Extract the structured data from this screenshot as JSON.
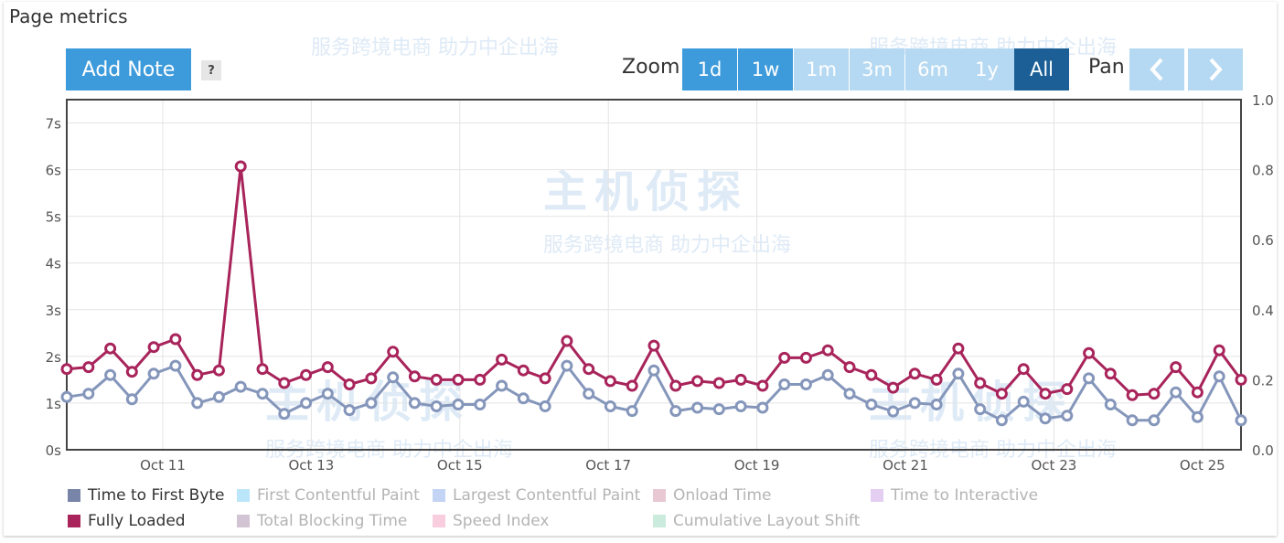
{
  "title": "Page metrics",
  "add_note_label": "Add Note",
  "help_label": "?",
  "zoom_label": "Zoom",
  "pan_label": "Pan",
  "zoom_buttons": [
    {
      "label": "1d",
      "state": "enabled"
    },
    {
      "label": "1w",
      "state": "enabled"
    },
    {
      "label": "1m",
      "state": "disabled"
    },
    {
      "label": "3m",
      "state": "disabled"
    },
    {
      "label": "6m",
      "state": "disabled"
    },
    {
      "label": "1y",
      "state": "disabled"
    },
    {
      "label": "All",
      "state": "selected"
    }
  ],
  "colors": {
    "button": "#3d9bdb",
    "button_disabled": "#b5d9f2",
    "button_selected": "#1b5f96",
    "ttfb": "#8596bb",
    "fully_loaded": "#a8245b",
    "grid": "#e4e4e4"
  },
  "watermark": {
    "logo_text": "主机侦探",
    "tagline": "服务跨境电商 助力中企出海"
  },
  "legend": [
    {
      "label": "Time to First Byte",
      "color": "#7885a8",
      "active": true
    },
    {
      "label": "First Contentful Paint",
      "color": "#8ed4f5",
      "active": false
    },
    {
      "label": "Largest Contentful Paint",
      "color": "#9db7ee",
      "active": false
    },
    {
      "label": "Onload Time",
      "color": "#d8a3b5",
      "active": false
    },
    {
      "label": "Time to Interactive",
      "color": "#d2aee8",
      "active": false
    },
    {
      "label": "Fully Loaded",
      "color": "#a8245b",
      "active": true
    },
    {
      "label": "Total Blocking Time",
      "color": "#b49cb5",
      "active": false
    },
    {
      "label": "Speed Index",
      "color": "#f3abc8",
      "active": false
    },
    {
      "label": "Cumulative Layout Shift",
      "color": "#a8dfc6",
      "active": false
    }
  ],
  "chart_data": {
    "type": "line",
    "x_tick_labels": [
      "Oct 11",
      "Oct 13",
      "Oct 15",
      "Oct 17",
      "Oct 19",
      "Oct 21",
      "Oct 23",
      "Oct 25"
    ],
    "y_tick_labels": [
      "0s",
      "1s",
      "2s",
      "3s",
      "4s",
      "5s",
      "6s",
      "7s"
    ],
    "y2_tick_labels": [
      "0.0",
      "0.2",
      "0.4",
      "0.6",
      "0.8",
      "1.0"
    ],
    "ylim": [
      0,
      7.5
    ],
    "y2lim": [
      0,
      1.0
    ],
    "grid": true,
    "series": [
      {
        "name": "Time to First Byte",
        "color": "#8596bb",
        "values": [
          1.13,
          1.2,
          1.6,
          1.08,
          1.63,
          1.8,
          1.0,
          1.13,
          1.35,
          1.2,
          0.77,
          1.0,
          1.2,
          0.85,
          1.0,
          1.55,
          1.0,
          0.93,
          0.97,
          0.97,
          1.37,
          1.1,
          0.93,
          1.8,
          1.2,
          0.93,
          0.83,
          1.7,
          0.83,
          0.9,
          0.87,
          0.93,
          0.9,
          1.4,
          1.4,
          1.6,
          1.2,
          0.97,
          0.82,
          1.0,
          0.97,
          1.63,
          0.87,
          0.63,
          1.03,
          0.67,
          0.73,
          1.53,
          0.97,
          0.63,
          0.63,
          1.23,
          0.7,
          1.57,
          0.63
        ]
      },
      {
        "name": "Fully Loaded",
        "color": "#a8245b",
        "values": [
          1.73,
          1.77,
          2.17,
          1.67,
          2.2,
          2.37,
          1.6,
          1.7,
          6.07,
          1.73,
          1.43,
          1.6,
          1.77,
          1.4,
          1.53,
          2.1,
          1.57,
          1.5,
          1.5,
          1.5,
          1.93,
          1.7,
          1.53,
          2.33,
          1.73,
          1.47,
          1.37,
          2.23,
          1.37,
          1.47,
          1.43,
          1.5,
          1.37,
          1.97,
          1.97,
          2.13,
          1.77,
          1.6,
          1.33,
          1.63,
          1.5,
          2.17,
          1.43,
          1.2,
          1.73,
          1.2,
          1.3,
          2.07,
          1.63,
          1.17,
          1.2,
          1.77,
          1.23,
          2.13,
          1.5
        ]
      }
    ]
  }
}
